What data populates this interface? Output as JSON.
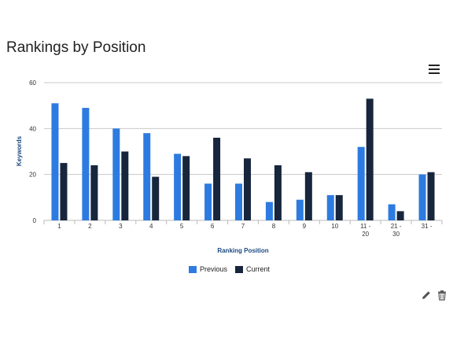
{
  "header": {
    "title": "Rankings by Position"
  },
  "icons": {
    "menu": "hamburger-menu-icon",
    "edit": "pencil-icon",
    "delete": "trash-icon"
  },
  "colors": {
    "previous": "#2d7be0",
    "current": "#17263d",
    "grid": "#c8c8c8",
    "axis_title": "#1d4a80"
  },
  "chart_data": {
    "type": "bar",
    "title": "Rankings by Position",
    "xlabel": "Ranking Position",
    "ylabel": "Keywords",
    "ylim": [
      0,
      60
    ],
    "yticks": [
      0,
      20,
      40,
      60
    ],
    "grid": true,
    "legend_position": "bottom",
    "categories": [
      "1",
      "2",
      "3",
      "4",
      "5",
      "6",
      "7",
      "8",
      "9",
      "10",
      "11 - 20",
      "21 - 30",
      "31 -"
    ],
    "category_lines": [
      [
        "1"
      ],
      [
        "2"
      ],
      [
        "3"
      ],
      [
        "4"
      ],
      [
        "5"
      ],
      [
        "6"
      ],
      [
        "7"
      ],
      [
        "8"
      ],
      [
        "9"
      ],
      [
        "10"
      ],
      [
        "11 -",
        "20"
      ],
      [
        "21 -",
        "30"
      ],
      [
        "31 -"
      ]
    ],
    "series": [
      {
        "name": "Previous",
        "values": [
          51,
          49,
          40,
          38,
          29,
          16,
          16,
          8,
          9,
          11,
          32,
          7,
          20
        ]
      },
      {
        "name": "Current",
        "values": [
          25,
          24,
          30,
          19,
          28,
          36,
          27,
          24,
          21,
          11,
          53,
          4,
          21
        ]
      }
    ]
  }
}
